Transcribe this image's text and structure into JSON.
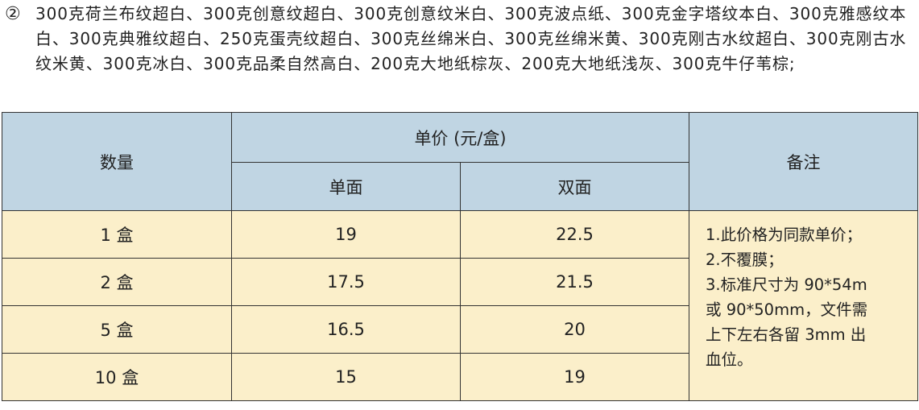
{
  "intro": {
    "marker": "②",
    "text": "300克荷兰布纹超白、300克创意纹超白、300克创意纹米白、300克波点纸、300克金字塔纹本白、300克雅感纹本白、300克典雅纹超白、250克蛋壳纹超白、300克丝绵米白、300克丝绵米黄、300克刚古水纹超白、300克刚古水纹米黄、300克冰白、300克品柔自然高白、200克大地纸棕灰、200克大地纸浅灰、300克牛仔苇棕;"
  },
  "table": {
    "headers": {
      "quantity": "数量",
      "unit_price": "单价 (元/盒)",
      "single": "单面",
      "double": "双面",
      "notes": "备注"
    },
    "rows": [
      {
        "qty": "1 盒",
        "single": "19",
        "double": "22.5"
      },
      {
        "qty": "2 盒",
        "single": "17.5",
        "double": "21.5"
      },
      {
        "qty": "5 盒",
        "single": "16.5",
        "double": "20"
      },
      {
        "qty": "10 盒",
        "single": "15",
        "double": "19"
      }
    ],
    "notes": [
      "1.此价格为同款单价；",
      "2.不覆膜；",
      "3.标准尺寸为  90*54m",
      "或 90*50mm，文件需",
      "上下左右各留  3mm 出",
      "血位。"
    ]
  },
  "colors": {
    "header_bg": "#c0d5e3",
    "body_bg": "#fbefca"
  }
}
